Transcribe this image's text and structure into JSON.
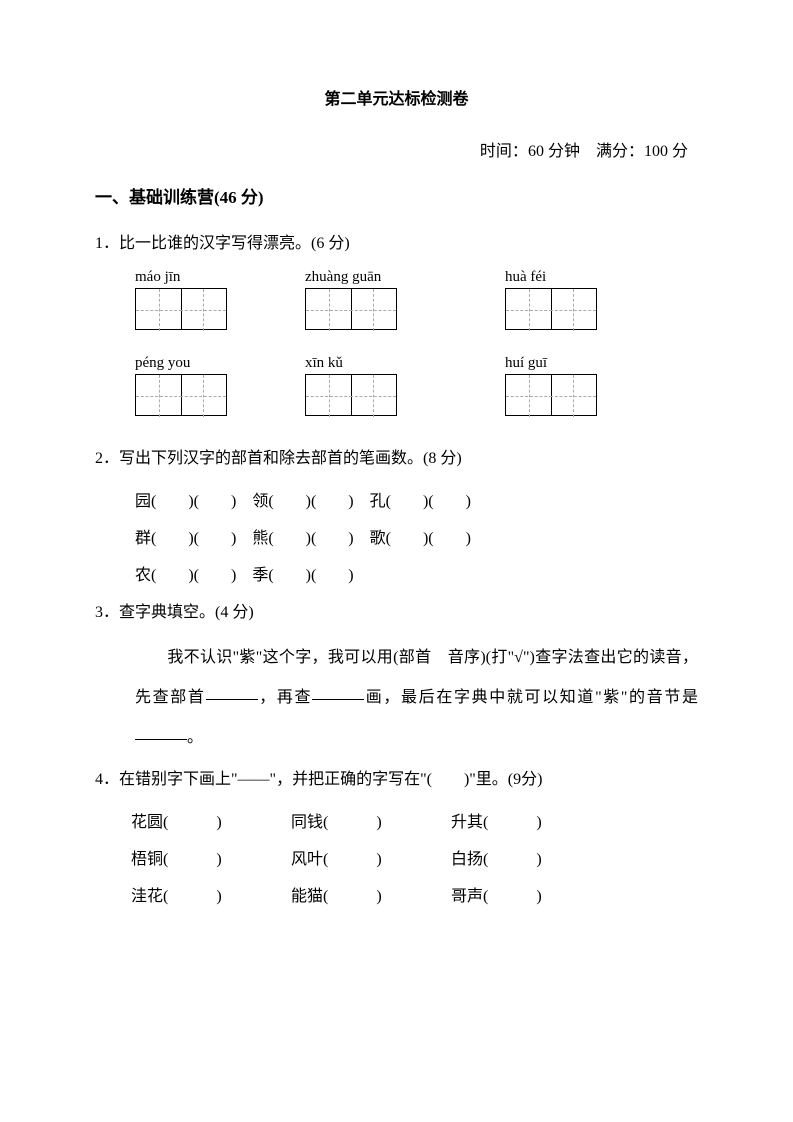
{
  "title": "第二单元达标检测卷",
  "meta": {
    "time_label": "时间：",
    "time_value": "60 分钟",
    "fullscore_label": "满分：",
    "fullscore_value": "100 分"
  },
  "section1": {
    "header": "一、基础训练营(46 分)"
  },
  "q1": {
    "num": "1．",
    "text": "比一比谁的汉字写得漂亮。(6 分)",
    "pinyin": {
      "r1c1": "máo  jīn",
      "r1c2": "zhuàng   guān",
      "r1c3": "huà  féi",
      "r2c1": "péng  you",
      "r2c2": "xīn  kǔ",
      "r2c3": "huí  guī"
    }
  },
  "q2": {
    "num": "2．",
    "text": "写出下列汉字的部首和除去部首的笔画数。(8 分)",
    "rows": [
      "园(　　)(　　)　领(　　)(　　)　孔(　　)(　　)",
      "群(　　)(　　)　熊(　　)(　　)　歌(　　)(　　)",
      "农(　　)(　　)　季(　　)(　　)"
    ]
  },
  "q3": {
    "num": "3．",
    "text": "查字典填空。(4 分)",
    "body_part1": "我不认识\"紫\"这个字，我可以用(部首　音序)(打\"",
    "body_check": "√",
    "body_part2": "\")查字法查出它的读音，先查部首",
    "body_part3": "，再查",
    "body_part4": "画，最后在字典中就可以知道\"紫\"的音节是",
    "body_part5": "。"
  },
  "q4": {
    "num": "4．",
    "text": "在错别字下画上\"——\"，并把正确的字写在\"(　　)\"里。(9分)",
    "rows": [
      [
        "花圆(　　　)",
        "同钱(　　　)",
        "升其(　　　)"
      ],
      [
        "梧铜(　　　)",
        "风叶(　　　)",
        "白扬(　　　)"
      ],
      [
        "洼花(　　　)",
        "能猫(　　　)",
        "哥声(　　　)"
      ]
    ]
  },
  "colors": {
    "text": "#000000",
    "background": "#ffffff",
    "dashed": "#aaaaaa"
  }
}
